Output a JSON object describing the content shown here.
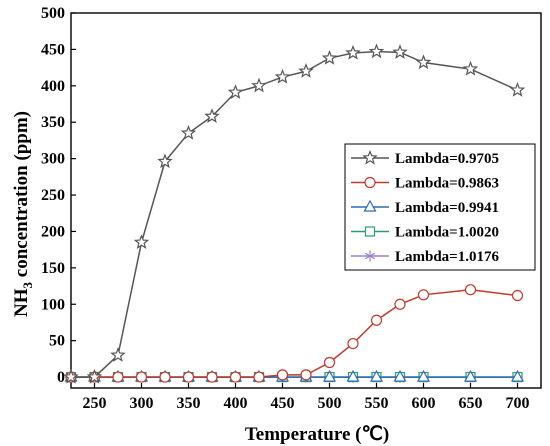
{
  "chart_data": {
    "type": "line",
    "xlabel": "Temperature (℃)",
    "ylabel_main": "NH",
    "ylabel_sub": "3",
    "ylabel_rest": " concentration (ppm)",
    "xlim": [
      225,
      725
    ],
    "ylim": [
      -15,
      500
    ],
    "xticks": [
      250,
      300,
      350,
      400,
      450,
      500,
      550,
      600,
      650,
      700
    ],
    "yticks": [
      0,
      50,
      100,
      150,
      200,
      250,
      300,
      350,
      400,
      450,
      500
    ],
    "grid": false,
    "legend_position": "center-right",
    "series": [
      {
        "name": "Lambda=0.9705",
        "color": "#555555",
        "marker": "star",
        "x": [
          225,
          250,
          275,
          300,
          325,
          350,
          375,
          400,
          425,
          450,
          475,
          500,
          525,
          550,
          575,
          600,
          650,
          700
        ],
        "y": [
          0,
          0,
          30,
          185,
          296,
          335,
          358,
          391,
          400,
          412,
          420,
          438,
          445,
          447,
          446,
          432,
          423,
          394
        ]
      },
      {
        "name": "Lambda=0.9863",
        "color": "#c0392b",
        "marker": "circle",
        "x": [
          225,
          250,
          275,
          300,
          325,
          350,
          375,
          400,
          425,
          450,
          475,
          500,
          525,
          550,
          575,
          600,
          650,
          700
        ],
        "y": [
          0,
          0,
          0,
          0,
          0,
          0,
          0,
          0,
          0,
          3,
          3,
          20,
          46,
          78,
          100,
          113,
          120,
          112
        ]
      },
      {
        "name": "Lambda=0.9941",
        "color": "#2e6bb5",
        "marker": "triangle",
        "x": [
          225,
          250,
          275,
          300,
          325,
          350,
          375,
          400,
          425,
          450,
          475,
          500,
          525,
          550,
          575,
          600,
          650,
          700
        ],
        "y": [
          0,
          0,
          0,
          0,
          0,
          0,
          0,
          0,
          0,
          0,
          0,
          0,
          0,
          0,
          0,
          0,
          0,
          0
        ]
      },
      {
        "name": "Lambda=1.0020",
        "color": "#2e9b6e",
        "marker": "square",
        "x": [
          225,
          250,
          275,
          300,
          325,
          350,
          375,
          400,
          425,
          450,
          475,
          500,
          525,
          550,
          575,
          600,
          650,
          700
        ],
        "y": [
          0,
          0,
          0,
          0,
          0,
          0,
          0,
          0,
          0,
          0,
          0,
          0,
          0,
          0,
          0,
          0,
          0,
          0
        ]
      },
      {
        "name": "Lambda=1.0176",
        "color": "#9b7fd6",
        "marker": "asterisk",
        "x": [
          225,
          250,
          275,
          300,
          325,
          350,
          375,
          400,
          425,
          450,
          475,
          500,
          525,
          550,
          575,
          600,
          650,
          700
        ],
        "y": [
          0,
          0,
          0,
          0,
          0,
          0,
          0,
          0,
          0,
          0,
          0,
          0,
          0,
          0,
          0,
          0,
          0,
          0
        ]
      }
    ]
  }
}
